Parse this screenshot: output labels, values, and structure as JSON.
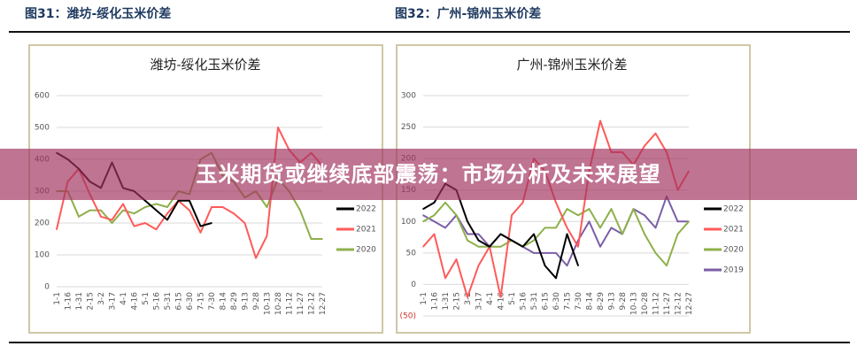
{
  "figures": [
    {
      "label": "图31：潍坊-绥化玉米价差"
    },
    {
      "label": "图32：广州-锦州玉米价差"
    }
  ],
  "banner": {
    "text": "玉米期货或继续底部震荡：市场分析及未来展望"
  },
  "chart_data": [
    {
      "type": "line",
      "title": "潍坊-绥化玉米价差",
      "ylim": [
        0,
        600
      ],
      "yticks": [
        "0",
        "100",
        "200",
        "300",
        "400",
        "500",
        "600"
      ],
      "grid": true,
      "legend": "right",
      "categories": [
        "1-1",
        "1-16",
        "1-31",
        "2-15",
        "3-2",
        "3-17",
        "4-1",
        "4-16",
        "5-1",
        "5-16",
        "5-31",
        "6-15",
        "6-30",
        "7-15",
        "7-30",
        "8-14",
        "8-29",
        "9-13",
        "9-28",
        "10-13",
        "10-28",
        "11-12",
        "11-27",
        "12-12",
        "12-27"
      ],
      "series": [
        {
          "name": "2022",
          "color": "#000000",
          "values": [
            420,
            400,
            370,
            330,
            310,
            390,
            310,
            300,
            270,
            240,
            210,
            270,
            270,
            190,
            200,
            null,
            null,
            null,
            null,
            null,
            null,
            null,
            null,
            null,
            null
          ]
        },
        {
          "name": "2021",
          "color": "#ff5a5a",
          "values": [
            180,
            330,
            370,
            290,
            220,
            210,
            260,
            190,
            200,
            180,
            230,
            270,
            240,
            170,
            250,
            250,
            230,
            200,
            90,
            160,
            500,
            430,
            390,
            420,
            380
          ]
        },
        {
          "name": "2020",
          "color": "#8db04a",
          "values": [
            300,
            300,
            220,
            240,
            240,
            200,
            240,
            230,
            250,
            260,
            250,
            300,
            290,
            400,
            420,
            350,
            330,
            280,
            300,
            250,
            340,
            300,
            240,
            150,
            150
          ]
        }
      ]
    },
    {
      "type": "line",
      "title": "广州-锦州玉米价差",
      "ylim": [
        -50,
        300
      ],
      "yticks": [
        "(50)",
        "0",
        "50",
        "100",
        "150",
        "200",
        "250",
        "300"
      ],
      "grid": true,
      "legend": "right",
      "categories": [
        "1-1",
        "1-16",
        "1-31",
        "2-15",
        "3-2",
        "3-17",
        "4-1",
        "4-16",
        "5-1",
        "5-16",
        "5-31",
        "6-15",
        "6-30",
        "7-15",
        "7-30",
        "8-14",
        "8-29",
        "9-13",
        "9-28",
        "10-13",
        "10-28",
        "11-12",
        "11-27",
        "12-12",
        "12-27"
      ],
      "series": [
        {
          "name": "2022",
          "color": "#000000",
          "values": [
            120,
            130,
            160,
            150,
            100,
            70,
            60,
            80,
            70,
            60,
            80,
            30,
            10,
            80,
            30,
            null,
            null,
            null,
            null,
            null,
            null,
            null,
            null,
            null,
            null
          ]
        },
        {
          "name": "2021",
          "color": "#ff5a5a",
          "values": [
            60,
            80,
            10,
            40,
            -20,
            30,
            60,
            -20,
            110,
            130,
            200,
            180,
            130,
            90,
            60,
            180,
            260,
            210,
            210,
            190,
            220,
            240,
            210,
            150,
            180
          ]
        },
        {
          "name": "2020",
          "color": "#8db04a",
          "values": [
            100,
            110,
            130,
            110,
            70,
            60,
            60,
            60,
            70,
            60,
            70,
            90,
            90,
            120,
            110,
            120,
            90,
            120,
            80,
            120,
            80,
            50,
            30,
            80,
            100
          ]
        },
        {
          "name": "2019",
          "color": "#7b5ea7",
          "values": [
            110,
            100,
            90,
            110,
            80,
            80,
            60,
            80,
            70,
            60,
            50,
            50,
            50,
            30,
            70,
            100,
            60,
            90,
            80,
            120,
            110,
            90,
            140,
            100,
            100
          ]
        }
      ]
    }
  ]
}
